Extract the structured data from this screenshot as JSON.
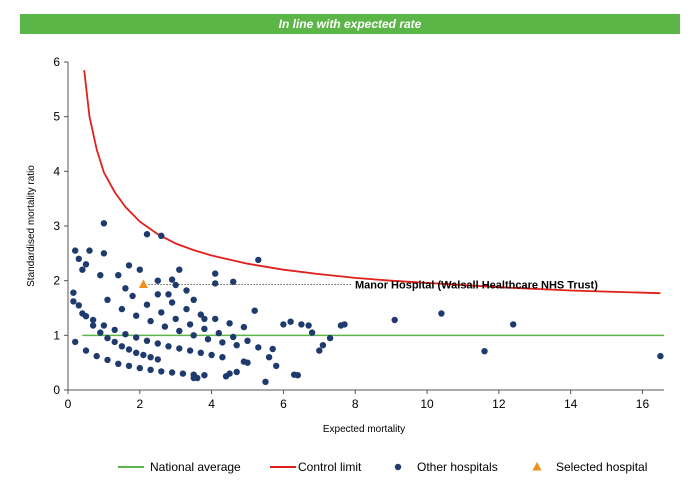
{
  "banner": {
    "text": "In line with expected rate",
    "color": "#5cb547"
  },
  "chart_data": {
    "type": "scatter",
    "xlabel": "Expected mortality",
    "ylabel": "Standardised mortality ratio",
    "xlim": [
      0,
      16.6
    ],
    "ylim": [
      0,
      6
    ],
    "xticks": [
      0,
      2,
      4,
      6,
      8,
      10,
      12,
      14,
      16
    ],
    "yticks": [
      0,
      1,
      2,
      3,
      4,
      5,
      6
    ],
    "grid": false,
    "legend_position": "bottom",
    "legend": [
      {
        "label": "National average",
        "kind": "line",
        "color": "#5cb547"
      },
      {
        "label": "Control limit",
        "kind": "line",
        "color": "#e0201b"
      },
      {
        "label": "Other hospitals",
        "kind": "dot",
        "color": "#1f3b6e"
      },
      {
        "label": "Selected hospital",
        "kind": "triangle",
        "color": "#f28c1a"
      }
    ],
    "national_average": 1,
    "control_limit": {
      "x": [
        0.45,
        0.6,
        0.8,
        1.0,
        1.3,
        1.6,
        2.0,
        2.5,
        3.0,
        3.5,
        4.0,
        5.0,
        6.0,
        7.0,
        8.0,
        9.0,
        10.0,
        11.0,
        12.0,
        13.0,
        14.0,
        15.0,
        16.5
      ],
      "y": [
        5.85,
        5.0,
        4.4,
        3.98,
        3.62,
        3.35,
        3.08,
        2.85,
        2.68,
        2.56,
        2.46,
        2.31,
        2.2,
        2.12,
        2.05,
        2.0,
        1.96,
        1.92,
        1.88,
        1.85,
        1.82,
        1.8,
        1.77
      ]
    },
    "selected_hospital": {
      "name": "Manor Hospital (Walsall Healthcare NHS Trust)",
      "x": 2.1,
      "y": 1.93
    },
    "other_hospitals": {
      "x": [
        1.0,
        2.6,
        2.2,
        5.3,
        4.1,
        3.1,
        4.6,
        0.2,
        0.6,
        0.3,
        0.5,
        0.9,
        1.0,
        0.4,
        1.4,
        1.7,
        2.0,
        2.5,
        2.8,
        3.3,
        3.5,
        4.1,
        1.6,
        2.9,
        3.0,
        0.15,
        0.3,
        0.5,
        0.7,
        0.9,
        1.1,
        1.3,
        1.5,
        1.7,
        1.9,
        2.1,
        2.3,
        2.5,
        0.2,
        0.5,
        0.8,
        1.1,
        1.4,
        1.7,
        2.0,
        2.3,
        2.6,
        2.9,
        3.2,
        3.5,
        3.8,
        0.15,
        0.4,
        0.7,
        1.0,
        1.3,
        1.6,
        1.9,
        2.2,
        2.5,
        2.8,
        3.1,
        3.4,
        3.7,
        4.0,
        1.1,
        1.5,
        1.9,
        2.3,
        2.7,
        3.1,
        3.5,
        3.9,
        4.3,
        4.7,
        1.8,
        2.2,
        2.6,
        3.0,
        3.4,
        3.8,
        4.2,
        4.6,
        5.0,
        2.5,
        2.9,
        3.3,
        3.7,
        4.1,
        4.5,
        4.9,
        5.0,
        5.3,
        5.5,
        5.7,
        5.8,
        6.0,
        6.3,
        6.5,
        6.7,
        6.8,
        7.0,
        7.1,
        7.3,
        7.6,
        7.7,
        5.2,
        5.6,
        6.2,
        6.4,
        4.7,
        4.9,
        3.8,
        3.5,
        3.6,
        4.4,
        4.5,
        4.3,
        9.1,
        10.4,
        12.4,
        11.6,
        16.5
      ],
      "y": [
        3.05,
        2.82,
        2.85,
        2.38,
        2.13,
        2.2,
        1.98,
        2.55,
        2.55,
        2.4,
        2.3,
        2.1,
        2.5,
        2.2,
        2.1,
        2.28,
        2.2,
        2.0,
        1.75,
        1.82,
        1.65,
        1.95,
        1.86,
        2.02,
        1.92,
        1.78,
        1.55,
        1.35,
        1.18,
        1.05,
        0.95,
        0.88,
        0.8,
        0.74,
        0.68,
        0.64,
        0.6,
        0.56,
        0.88,
        0.72,
        0.62,
        0.55,
        0.48,
        0.44,
        0.4,
        0.37,
        0.34,
        0.32,
        0.3,
        0.28,
        0.27,
        1.62,
        1.4,
        1.28,
        1.18,
        1.1,
        1.02,
        0.96,
        0.9,
        0.85,
        0.8,
        0.76,
        0.72,
        0.68,
        0.64,
        1.65,
        1.48,
        1.36,
        1.26,
        1.16,
        1.08,
        1.0,
        0.93,
        0.87,
        0.82,
        1.72,
        1.56,
        1.42,
        1.3,
        1.2,
        1.12,
        1.04,
        0.97,
        0.9,
        1.75,
        1.6,
        1.48,
        1.38,
        1.3,
        1.22,
        1.15,
        0.5,
        0.78,
        0.15,
        0.75,
        0.44,
        1.2,
        0.28,
        1.2,
        1.18,
        1.05,
        0.72,
        0.82,
        0.95,
        1.18,
        1.2,
        1.45,
        0.6,
        1.25,
        0.27,
        0.33,
        0.52,
        1.3,
        0.22,
        0.22,
        0.25,
        0.3,
        0.6,
        1.28,
        1.4,
        1.2,
        0.71,
        0.62
      ]
    }
  }
}
